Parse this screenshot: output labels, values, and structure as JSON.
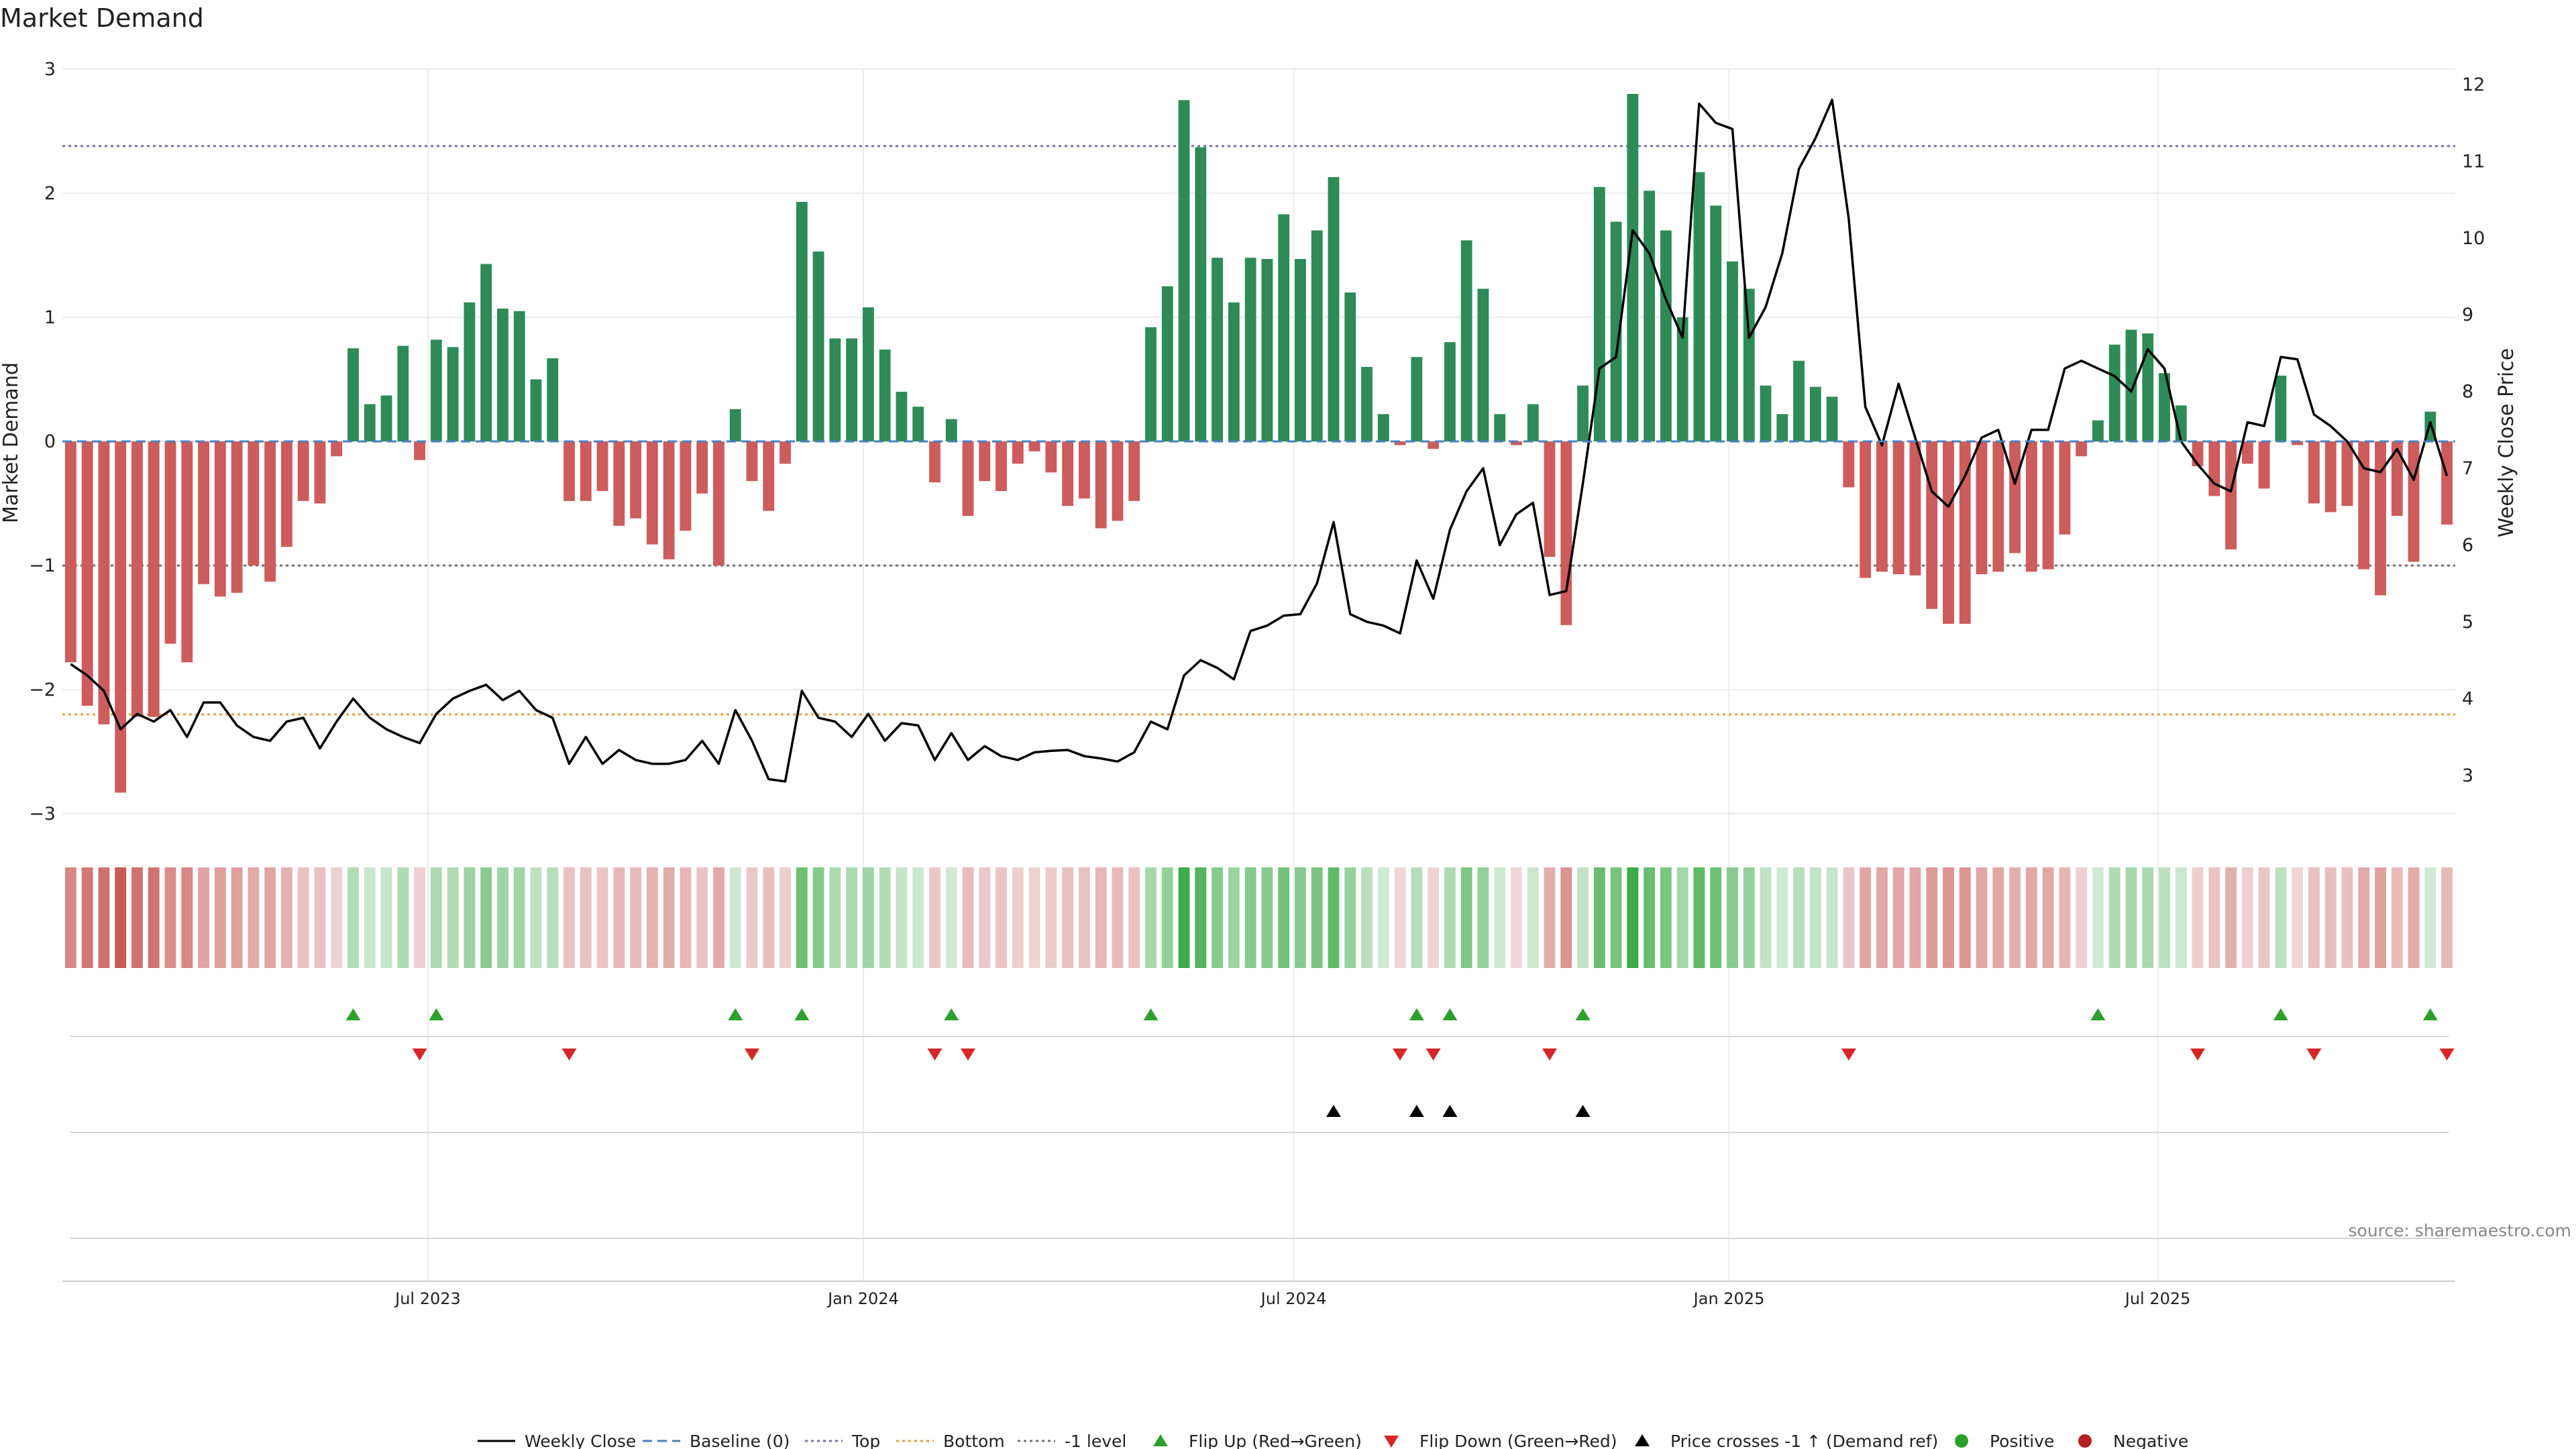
{
  "title": "Market Demand",
  "source": "source: sharemaestro.com",
  "colors": {
    "positive_bar": "#2e8b57",
    "negative_bar": "#cd5c5c",
    "price_line": "#000000",
    "baseline": "#4a7fc1",
    "top_line": "#7b6fb0",
    "bottom_line": "#e0a040",
    "minus1_line": "#707070",
    "flip_up": "#2ca02c",
    "flip_down": "#d62728",
    "cross": "#000000",
    "positive_dot": "#2ca02c",
    "negative_dot": "#b22222"
  },
  "chart_data": {
    "type": "bar",
    "title": "Market Demand",
    "ylabel_left": "Market Demand",
    "ylabel_right": "Weekly Close Price",
    "ylim_left": [
      -3,
      3
    ],
    "ylim_right": [
      2.5,
      12.2
    ],
    "yticks_left": [
      "3",
      "2",
      "1",
      "0",
      "−1",
      "−2",
      "−3"
    ],
    "yticks_right": [
      "12",
      "11",
      "10",
      "9",
      "8",
      "7",
      "6",
      "5",
      "4",
      "3"
    ],
    "xticks": [
      "Jul 2023",
      "Jan 2024",
      "Jul 2024",
      "Jan 2025",
      "Jul 2025"
    ],
    "xtick_index": [
      21.5,
      47.7,
      73.6,
      99.8,
      125.6
    ],
    "reference_lines": {
      "top": 2.38,
      "bottom": -2.2,
      "minus1": -1.0,
      "baseline": 0
    },
    "demand": [
      -1.78,
      -2.13,
      -2.28,
      -2.83,
      -2.22,
      -2.22,
      -1.63,
      -1.78,
      -1.15,
      -1.25,
      -1.22,
      -1.0,
      -1.13,
      -0.85,
      -0.48,
      -0.5,
      -0.12,
      0.75,
      0.3,
      0.37,
      0.77,
      -0.15,
      0.82,
      0.76,
      1.12,
      1.43,
      1.07,
      1.05,
      0.5,
      0.67,
      -0.48,
      -0.48,
      -0.4,
      -0.68,
      -0.62,
      -0.83,
      -0.95,
      -0.72,
      -0.42,
      -1.0,
      0.26,
      -0.32,
      -0.56,
      -0.18,
      1.93,
      1.53,
      0.83,
      0.83,
      1.08,
      0.74,
      0.4,
      0.28,
      -0.33,
      0.18,
      -0.6,
      -0.32,
      -0.4,
      -0.18,
      -0.08,
      -0.25,
      -0.52,
      -0.46,
      -0.7,
      -0.64,
      -0.48,
      0.92,
      1.25,
      2.75,
      2.37,
      1.48,
      1.12,
      1.48,
      1.47,
      1.83,
      1.47,
      1.7,
      2.13,
      1.2,
      0.6,
      0.22,
      -0.03,
      0.68,
      -0.06,
      0.8,
      1.62,
      1.23,
      0.22,
      -0.03,
      0.3,
      -0.93,
      -1.48,
      0.45,
      2.05,
      1.77,
      2.8,
      2.02,
      1.7,
      1.0,
      2.17,
      1.9,
      1.45,
      1.23,
      0.45,
      0.22,
      0.65,
      0.44,
      0.36,
      -0.37,
      -1.1,
      -1.05,
      -1.07,
      -1.08,
      -1.35,
      -1.47,
      -1.47,
      -1.07,
      -1.05,
      -0.9,
      -1.05,
      -1.03,
      -0.75,
      -0.12,
      0.17,
      0.78,
      0.9,
      0.87,
      0.55,
      0.29,
      -0.2,
      -0.44,
      -0.87,
      -0.18,
      -0.38,
      0.53,
      -0.03,
      -0.5,
      -0.57,
      -0.52,
      -1.03,
      -1.24,
      -0.6,
      -0.97,
      0.24,
      -0.67
    ],
    "weekly_close": [
      4.45,
      4.3,
      4.1,
      3.6,
      3.8,
      3.7,
      3.85,
      3.5,
      3.95,
      3.95,
      3.65,
      3.5,
      3.45,
      3.7,
      3.75,
      3.35,
      3.7,
      4.0,
      3.75,
      3.6,
      3.5,
      3.42,
      3.8,
      4.0,
      4.1,
      4.18,
      3.98,
      4.1,
      3.85,
      3.75,
      3.15,
      3.5,
      3.15,
      3.33,
      3.2,
      3.15,
      3.15,
      3.2,
      3.45,
      3.15,
      3.85,
      3.45,
      2.95,
      2.92,
      4.1,
      3.75,
      3.7,
      3.5,
      3.8,
      3.45,
      3.68,
      3.65,
      3.2,
      3.55,
      3.2,
      3.38,
      3.25,
      3.2,
      3.3,
      3.32,
      3.33,
      3.25,
      3.22,
      3.18,
      3.3,
      3.7,
      3.6,
      4.3,
      4.5,
      4.4,
      4.25,
      4.88,
      4.95,
      5.08,
      5.1,
      5.5,
      6.3,
      5.1,
      5.0,
      4.95,
      4.85,
      5.8,
      5.3,
      6.2,
      6.7,
      7.0,
      6.0,
      6.4,
      6.55,
      5.35,
      5.4,
      6.8,
      8.3,
      8.45,
      10.1,
      9.8,
      9.2,
      8.7,
      11.75,
      11.5,
      11.42,
      8.7,
      9.1,
      9.8,
      10.9,
      11.3,
      11.8,
      10.25,
      7.8,
      7.3,
      8.1,
      7.4,
      6.7,
      6.5,
      6.9,
      7.4,
      7.5,
      6.8,
      7.5,
      7.5,
      8.3,
      8.4,
      8.3,
      8.2,
      8.0,
      8.55,
      8.3,
      7.35,
      7.05,
      6.8,
      6.7,
      7.6,
      7.55,
      8.45,
      8.42,
      7.7,
      7.55,
      7.35,
      7.0,
      6.95,
      7.25,
      6.85,
      7.6,
      6.9
    ],
    "events": {
      "flip_up_index": [
        17,
        22,
        40,
        44,
        53,
        65,
        81,
        83,
        91,
        122,
        133,
        142
      ],
      "flip_down_index": [
        21,
        30,
        41,
        52,
        54,
        80,
        82,
        89,
        107,
        128,
        135,
        143
      ],
      "price_cross_index": [
        76,
        81,
        83,
        91
      ]
    },
    "legend": [
      "Weekly Close",
      "Baseline (0)",
      "Top",
      "Bottom",
      "-1 level",
      "Flip Up (Red→Green)",
      "Flip Down (Green→Red)",
      "Price crosses -1 ↑ (Demand ref)",
      "Positive",
      "Negative"
    ]
  }
}
